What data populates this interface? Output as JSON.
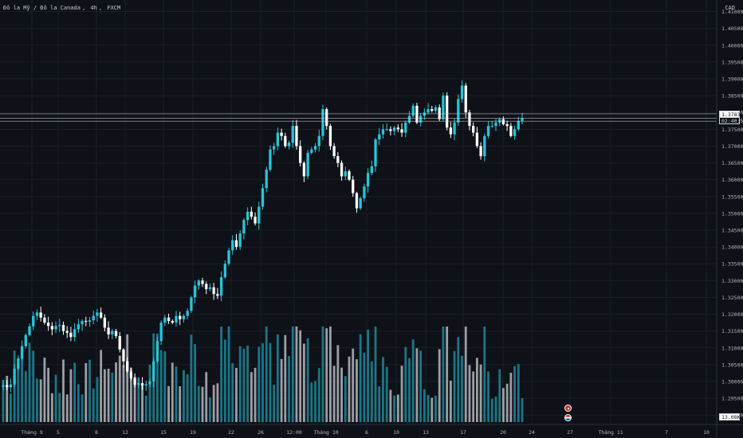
{
  "header": {
    "symbol_parts": [
      "Đô la Mỹ / Đô la Canada",
      "4h",
      "FXCM"
    ],
    "currency": "CAD"
  },
  "price_tags": {
    "last_price": "1.37831",
    "countdown": "02:40:53",
    "volume": "13.08K"
  },
  "colors": {
    "background": "#0e1117",
    "up": "#26c6da",
    "down": "#ffffff",
    "vol_up": "#1c7585",
    "vol_down": "#9b9ea5",
    "grid": "#1b1f27",
    "axis_text": "#b2b5be"
  },
  "chart_data": {
    "type": "candlestick",
    "title": "Đô la Mỹ / Đô la Canada, 4h, FXCM",
    "price_axis": {
      "ticks": [
        "1.29000",
        "1.29500",
        "1.30000",
        "1.30500",
        "1.31000",
        "1.31500",
        "1.32000",
        "1.32500",
        "1.33000",
        "1.33500",
        "1.34000",
        "1.34500",
        "1.35000",
        "1.35500",
        "1.36000",
        "1.36500",
        "1.37000",
        "1.37500",
        "1.38000",
        "1.38500",
        "1.39000",
        "1.39500",
        "1.40000",
        "1.40500",
        "1.41000"
      ],
      "ylim": [
        1.2865,
        1.4125
      ]
    },
    "time_axis": {
      "labels": [
        "Tháng 9",
        "5",
        "8",
        "12",
        "15",
        "19",
        "22",
        "26",
        "12:00",
        "Tháng 10",
        "6",
        "10",
        "13",
        "17",
        "20",
        "24",
        "27",
        "Tháng 11",
        "7",
        "10"
      ]
    },
    "key_prices": [
      1.3796,
      1.3783,
      1.3774
    ],
    "closes_4h": [
      1.2989,
      1.2983,
      1.2991,
      1.3038,
      1.3068,
      1.3105,
      1.3138,
      1.3164,
      1.3195,
      1.3205,
      1.319,
      1.3175,
      1.3165,
      1.3155,
      1.3165,
      1.3168,
      1.315,
      1.3145,
      1.3132,
      1.3155,
      1.317,
      1.318,
      1.3178,
      1.3182,
      1.3195,
      1.3205,
      1.319,
      1.316,
      1.314,
      1.315,
      1.3135,
      1.3095,
      1.306,
      1.303,
      1.301,
      1.299,
      1.2995,
      1.2988,
      1.2992,
      1.3,
      1.306,
      1.312,
      1.3175,
      1.319,
      1.318,
      1.3175,
      1.3195,
      1.3185,
      1.3195,
      1.321,
      1.325,
      1.3285,
      1.33,
      1.329,
      1.3275,
      1.328,
      1.326,
      1.3255,
      1.331,
      1.335,
      1.339,
      1.342,
      1.34,
      1.344,
      1.348,
      1.3505,
      1.349,
      1.347,
      1.352,
      1.3575,
      1.363,
      1.369,
      1.37,
      1.374,
      1.373,
      1.37,
      1.371,
      1.376,
      1.37,
      1.365,
      1.361,
      1.368,
      1.369,
      1.37,
      1.373,
      1.381,
      1.376,
      1.37,
      1.367,
      1.365,
      1.361,
      1.3625,
      1.36,
      1.356,
      1.3515,
      1.3545,
      1.358,
      1.362,
      1.364,
      1.372,
      1.3735,
      1.375,
      1.375,
      1.3745,
      1.3755,
      1.375,
      1.374,
      1.377,
      1.379,
      1.382,
      1.377,
      1.379,
      1.38,
      1.381,
      1.3805,
      1.3815,
      1.378,
      1.385,
      1.3755,
      1.3735,
      1.377,
      1.384,
      1.388,
      1.38,
      1.376,
      1.374,
      1.37,
      1.367,
      1.373,
      1.376,
      1.376,
      1.377,
      1.378,
      1.3765,
      1.376,
      1.373,
      1.375,
      1.3775,
      1.3783
    ],
    "volume_note": "volume histogram at bottom, latest bar 13.08K"
  }
}
